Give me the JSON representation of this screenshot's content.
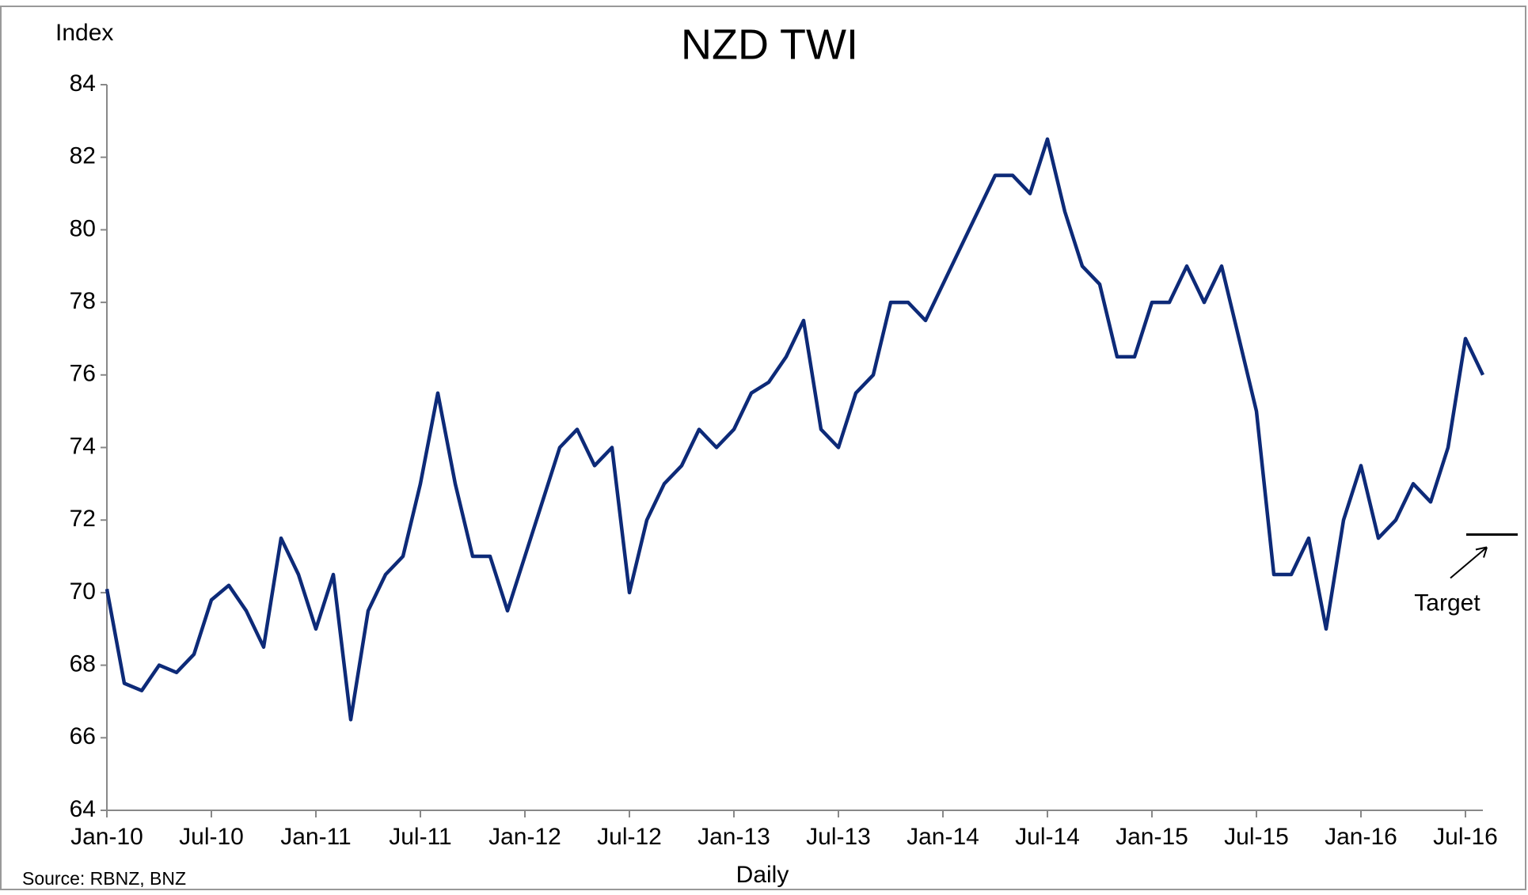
{
  "chart_data": {
    "type": "line",
    "title": "NZD TWI",
    "y_axis_label": "Index",
    "x_axis_label": "Daily",
    "source": "Source: RBNZ, BNZ",
    "x": [
      "2010-01",
      "2010-02",
      "2010-03",
      "2010-04",
      "2010-05",
      "2010-06",
      "2010-07",
      "2010-08",
      "2010-09",
      "2010-10",
      "2010-11",
      "2010-12",
      "2011-01",
      "2011-02",
      "2011-03",
      "2011-04",
      "2011-05",
      "2011-06",
      "2011-07",
      "2011-08",
      "2011-09",
      "2011-10",
      "2011-11",
      "2011-12",
      "2012-01",
      "2012-02",
      "2012-03",
      "2012-04",
      "2012-05",
      "2012-06",
      "2012-07",
      "2012-08",
      "2012-09",
      "2012-10",
      "2012-11",
      "2012-12",
      "2013-01",
      "2013-02",
      "2013-03",
      "2013-04",
      "2013-05",
      "2013-06",
      "2013-07",
      "2013-08",
      "2013-09",
      "2013-10",
      "2013-11",
      "2013-12",
      "2014-01",
      "2014-02",
      "2014-03",
      "2014-04",
      "2014-05",
      "2014-06",
      "2014-07",
      "2014-08",
      "2014-09",
      "2014-10",
      "2014-11",
      "2014-12",
      "2015-01",
      "2015-02",
      "2015-03",
      "2015-04",
      "2015-05",
      "2015-06",
      "2015-07",
      "2015-08",
      "2015-09",
      "2015-10",
      "2015-11",
      "2015-12",
      "2016-01",
      "2016-02",
      "2016-03",
      "2016-04",
      "2016-05",
      "2016-06",
      "2016-07",
      "2016-08"
    ],
    "series": [
      {
        "name": "NZD TWI",
        "color": "#0d2a78",
        "values": [
          70.1,
          67.5,
          67.3,
          68,
          67.8,
          68.3,
          69.8,
          70.2,
          69.5,
          68.5,
          71.5,
          70.5,
          69,
          70.5,
          66.5,
          69.5,
          70.5,
          71,
          73,
          75.5,
          73,
          71,
          71,
          69.5,
          71,
          72.5,
          74,
          74.5,
          73.5,
          74,
          70,
          72,
          73,
          73.5,
          74.5,
          74,
          74.5,
          75.5,
          75.8,
          76.5,
          77.5,
          74.5,
          74,
          75.5,
          76,
          78,
          78,
          77.5,
          78.5,
          79.5,
          80.5,
          81.5,
          81.5,
          81,
          82.5,
          80.5,
          79,
          78.5,
          76.5,
          76.5,
          78,
          78,
          79,
          78,
          79,
          77,
          75,
          70.5,
          70.5,
          71.5,
          69,
          72,
          73.5,
          71.5,
          72,
          73,
          72.5,
          74,
          77,
          76
        ]
      }
    ],
    "xlim": [
      "2010-01",
      "2016-08"
    ],
    "xticks": [
      {
        "value": "2010-01",
        "label": "Jan-10"
      },
      {
        "value": "2010-07",
        "label": "Jul-10"
      },
      {
        "value": "2011-01",
        "label": "Jan-11"
      },
      {
        "value": "2011-07",
        "label": "Jul-11"
      },
      {
        "value": "2012-01",
        "label": "Jan-12"
      },
      {
        "value": "2012-07",
        "label": "Jul-12"
      },
      {
        "value": "2013-01",
        "label": "Jan-13"
      },
      {
        "value": "2013-07",
        "label": "Jul-13"
      },
      {
        "value": "2014-01",
        "label": "Jan-14"
      },
      {
        "value": "2014-07",
        "label": "Jul-14"
      },
      {
        "value": "2015-01",
        "label": "Jan-15"
      },
      {
        "value": "2015-07",
        "label": "Jul-15"
      },
      {
        "value": "2016-01",
        "label": "Jan-16"
      },
      {
        "value": "2016-07",
        "label": "Jul-16"
      }
    ],
    "ylim": [
      64,
      84
    ],
    "yticks": [
      64,
      66,
      68,
      70,
      72,
      74,
      76,
      78,
      80,
      82,
      84
    ],
    "grid": false,
    "target": {
      "label": "Target",
      "value": 71.6,
      "color": "#000000"
    }
  }
}
